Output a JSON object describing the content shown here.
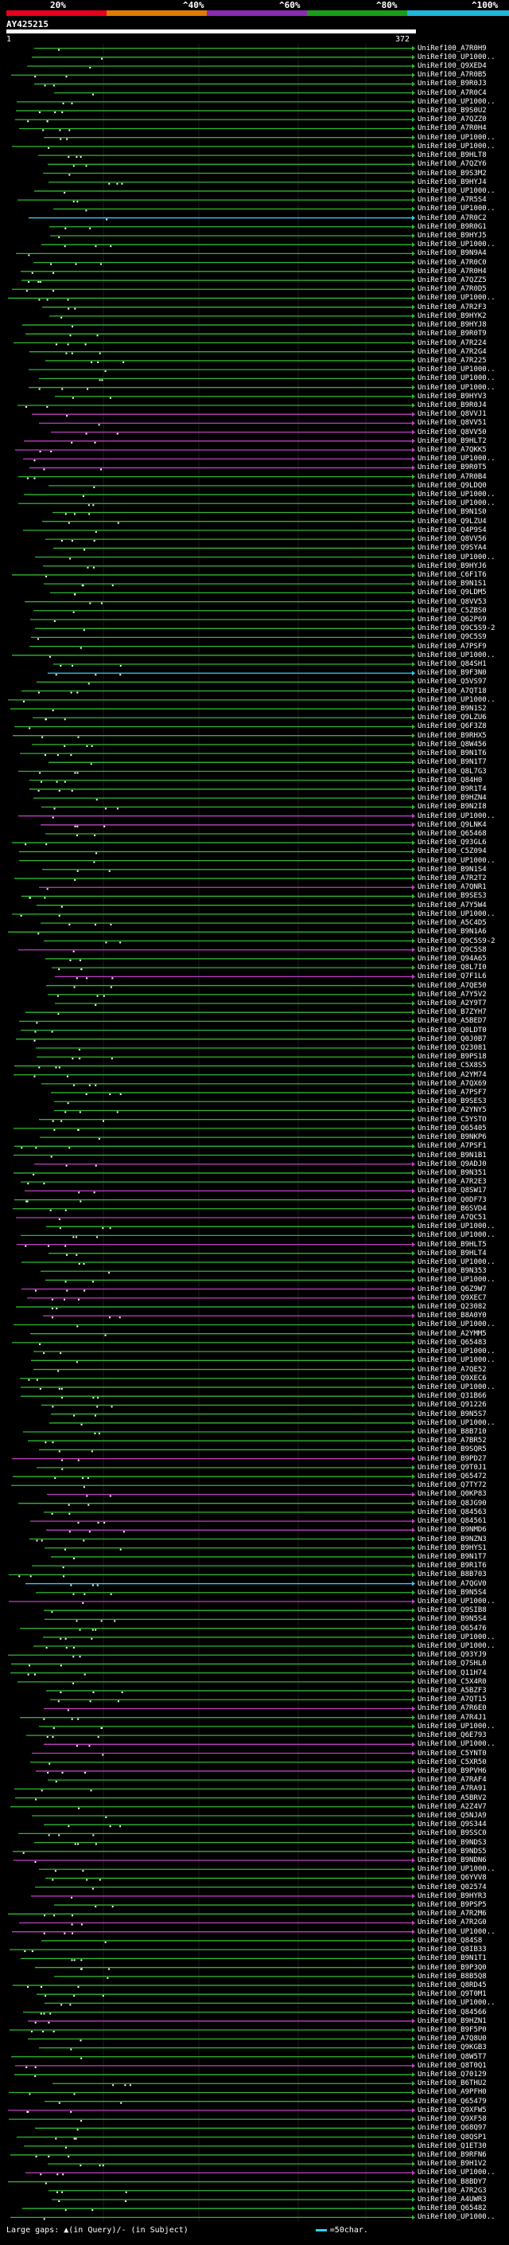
{
  "scale": {
    "labels": [
      "20%",
      "^40%",
      "^60%",
      "^80%",
      "^100%"
    ],
    "colors": [
      "#e8001c",
      "#e07b00",
      "#8a2ab0",
      "#1a9e1a",
      "#1fb8d8"
    ]
  },
  "query": {
    "name": "AY425215",
    "start": "1",
    "end": "372"
  },
  "hits": [
    "UniRef100_A7R0H9",
    "UniRef100_UP1000..",
    "UniRef100_Q9XED4",
    "UniRef100_A7R0B5",
    "UniRef100_B9R0J3",
    "UniRef100_A7R0C4",
    "UniRef100_UP1000..",
    "UniRef100_B9S0U2",
    "UniRef100_A7QZZ0",
    "UniRef100_A7R0H4",
    "UniRef100_UP1000..",
    "UniRef100_UP1000..",
    "UniRef100_B9HLT8",
    "UniRef100_A7QZY6",
    "UniRef100_B9S3M2",
    "UniRef100_B9HYJ4",
    "UniRef100_UP1000..",
    "UniRef100_A7R5S4",
    "UniRef100_UP1000..",
    "UniRef100_A7R0C2",
    "UniRef100_B9R0G1",
    "UniRef100_B9HYJ5",
    "UniRef100_UP1000..",
    "UniRef100_B9N9A4",
    "UniRef100_A7R0C0",
    "UniRef100_A7R0H4",
    "UniRef100_A7QZZ5",
    "UniRef100_A7R0D5",
    "UniRef100_UP1000..",
    "UniRef100_A7R2F3",
    "UniRef100_B9HYK2",
    "UniRef100_B9HYJ8",
    "UniRef100_B9R0T9",
    "UniRef100_A7R224",
    "UniRef100_A7R2G4",
    "UniRef100_A7R225",
    "UniRef100_UP1000..",
    "UniRef100_UP1000..",
    "UniRef100_UP1000..",
    "UniRef100_B9HYV3",
    "UniRef100_B9R0J4",
    "UniRef100_Q8VVJ1",
    "UniRef100_Q8VV51",
    "UniRef100_Q8VV50",
    "UniRef100_B9HLT2",
    "UniRef100_A7QKK5",
    "UniRef100_UP1000..",
    "UniRef100_B9R0T5",
    "UniRef100_A7R0B4",
    "UniRef100_Q9LDQ0",
    "UniRef100_UP1000..",
    "UniRef100_UP1000..",
    "UniRef100_B9N1S0",
    "UniRef100_Q9LZU4",
    "UniRef100_Q4P9S4",
    "UniRef100_Q8VV56",
    "UniRef100_Q9SYA4",
    "UniRef100_UP1000..",
    "UniRef100_B9HYJ6",
    "UniRef100_C6F1T6",
    "UniRef100_B9N1S1",
    "UniRef100_Q9LDM5",
    "UniRef100_Q8VV53",
    "UniRef100_C5ZBS0",
    "UniRef100_Q62P69",
    "UniRef100_Q9C5S9-2",
    "UniRef100_Q9C5S9",
    "UniRef100_A7PSF9",
    "UniRef100_UP1000..",
    "UniRef100_Q84SH1",
    "UniRef100_B9F3N0",
    "UniRef100_Q5VS97",
    "UniRef100_A7QT18",
    "UniRef100_UP1000..",
    "UniRef100_B9N1S2",
    "UniRef100_Q9LZU6",
    "UniRef100_Q6F3Z8",
    "UniRef100_B9RHX5",
    "UniRef100_Q8W456",
    "UniRef100_B9N1T6",
    "UniRef100_B9N1T7",
    "UniRef100_Q8L7G3",
    "UniRef100_Q84H0",
    "UniRef100_B9R1T4",
    "UniRef100_B9HZN4",
    "UniRef100_B9N2I8",
    "UniRef100_UP1000..",
    "UniRef100_Q9LNK4",
    "UniRef100_Q65468",
    "UniRef100_Q93GL6",
    "UniRef100_C5Z094",
    "UniRef100_UP1000..",
    "UniRef100_B9N1S4",
    "UniRef100_A7R2T2",
    "UniRef100_A7QNR1",
    "UniRef100_B9SES3",
    "UniRef100_A7Y5W4",
    "UniRef100_UP1000..",
    "UniRef100_A5C4D5",
    "UniRef100_B9N1A6",
    "UniRef100_Q9C5S9-2",
    "UniRef100_Q9C5S8",
    "UniRef100_Q94A65",
    "UniRef100_Q8L7I0",
    "UniRef100_Q7F1L6",
    "UniRef100_A7QE50",
    "UniRef100_A7Y5V2",
    "UniRef100_A2Y9T7",
    "UniRef100_B7ZYH7",
    "UniRef100_A5BED7",
    "UniRef100_Q0LDT0",
    "UniRef100_Q0J0B7",
    "UniRef100_Q23081",
    "UniRef100_B9PS18",
    "UniRef100_C5X8S5",
    "UniRef100_A2YM74",
    "UniRef100_A7QX69",
    "UniRef100_A7PSF7",
    "UniRef100_B9SES3",
    "UniRef100_A2YNY5",
    "UniRef100_C5YSTO",
    "UniRef100_Q65405",
    "UniRef100_B9NKP6",
    "UniRef100_A7PSF1",
    "UniRef100_B9N1B1",
    "UniRef100_Q9ADJ0",
    "UniRef100_B9N351",
    "UniRef100_A7R2E3",
    "UniRef100_Q8SW17",
    "UniRef100_Q0DF73",
    "UniRef100_B6SVD4",
    "UniRef100_A7QC51",
    "UniRef100_UP1000..",
    "UniRef100_UP1000..",
    "UniRef100_B9HLT5",
    "UniRef100_B9HLT4",
    "UniRef100_UP1000..",
    "UniRef100_B9N353",
    "UniRef100_UP1000..",
    "UniRef100_Q6Z9W7",
    "UniRef100_Q9XEC7",
    "UniRef100_Q23082",
    "UniRef100_B8A0Y0",
    "UniRef100_UP1000..",
    "UniRef100_A2YMM5",
    "UniRef100_Q65483",
    "UniRef100_UP1000..",
    "UniRef100_UP1000..",
    "UniRef100_A7QE52",
    "UniRef100_Q9XEC6",
    "UniRef100_UP1000..",
    "UniRef100_Q31B66",
    "UniRef100_Q91226",
    "UniRef100_B9N5S7",
    "UniRef100_UP1000..",
    "UniRef100_B8B710",
    "UniRef100_A7BR52",
    "UniRef100_B9SQR5",
    "UniRef100_B9PD27",
    "UniRef100_Q9T0J1",
    "UniRef100_Q65472",
    "UniRef100_Q7TY72",
    "UniRef100_Q0KP83",
    "UniRef100_Q8JG90",
    "UniRef100_Q84563",
    "UniRef100_Q84561",
    "UniRef100_B9NMD6",
    "UniRef100_B9NZN3",
    "UniRef100_B9HYS1",
    "UniRef100_B9N1T7",
    "UniRef100_B9R1T6",
    "UniRef100_B8B703",
    "UniRef100_A7QGV0",
    "UniRef100_B9N5S4",
    "UniRef100_UP1000..",
    "UniRef100_Q9SIB8",
    "UniRef100_B9N5S4",
    "UniRef100_Q65476",
    "UniRef100_UP1000..",
    "UniRef100_UP1000..",
    "UniRef100_Q93YJ9",
    "UniRef100_Q7SHL0",
    "UniRef100_Q11H74",
    "UniRef100_C5X4R0",
    "UniRef100_A5BZF3",
    "UniRef100_A7QT15",
    "UniRef100_A7R6E0",
    "UniRef100_A7R4J1",
    "UniRef100_UP1000..",
    "UniRef100_Q6E793",
    "UniRef100_UP1000..",
    "UniRef100_C5YNT0",
    "UniRef100_C5XR50",
    "UniRef100_B9PVH6",
    "UniRef100_A7RAF4",
    "UniRef100_A7RA91",
    "UniRef100_A5BRV2",
    "UniRef100_A2Z4V7",
    "UniRef100_Q5NJA9",
    "UniRef100_Q9S344",
    "UniRef100_B9SSC0",
    "UniRef100_B9NDS3",
    "UniRef100_B9NDS5",
    "UniRef100_B9NDN6",
    "UniRef100_UP1000..",
    "UniRef100_Q6YVV8",
    "UniRef100_Q02574",
    "UniRef100_B9HYR3",
    "UniRef100_B9PSP5",
    "UniRef100_A7R2M6",
    "UniRef100_A7R2G0",
    "UniRef100_UP1000..",
    "UniRef100_Q84S8",
    "UniRef100_Q8IB33",
    "UniRef100_B9N1T1",
    "UniRef100_B9P3Q0",
    "UniRef100_B8B5Q8",
    "UniRef100_Q8RD45",
    "UniRef100_Q9T0M1",
    "UniRef100_UP1000..",
    "UniRef100_Q84566",
    "UniRef100_B9HZN1",
    "UniRef100_B9F5P0",
    "UniRef100_A7Q8U0",
    "UniRef100_Q9KGB3",
    "UniRef100_Q8W5T7",
    "UniRef100_Q8T0Q1",
    "UniRef100_Q70129",
    "UniRef100_B6THU2",
    "UniRef100_A9PFH0",
    "UniRef100_Q65479",
    "UniRef100_Q9XFW5",
    "UniRef100_Q9XF58",
    "UniRef100_Q68Q97",
    "UniRef100_Q8QSP1",
    "UniRef100_Q1ET30",
    "UniRef100_B9RFN6",
    "UniRef100_B9H1V2",
    "UniRef100_UP1000..",
    "UniRef100_B8BDY7",
    "UniRef100_A7R2G3",
    "UniRef100_A4UWR3",
    "UniRef100_Q65482",
    "UniRef100_UP1000.."
  ],
  "legend": {
    "text": "Large gaps: ▲(in Query)/- (in Subject)",
    "scale_text": "=50char."
  }
}
